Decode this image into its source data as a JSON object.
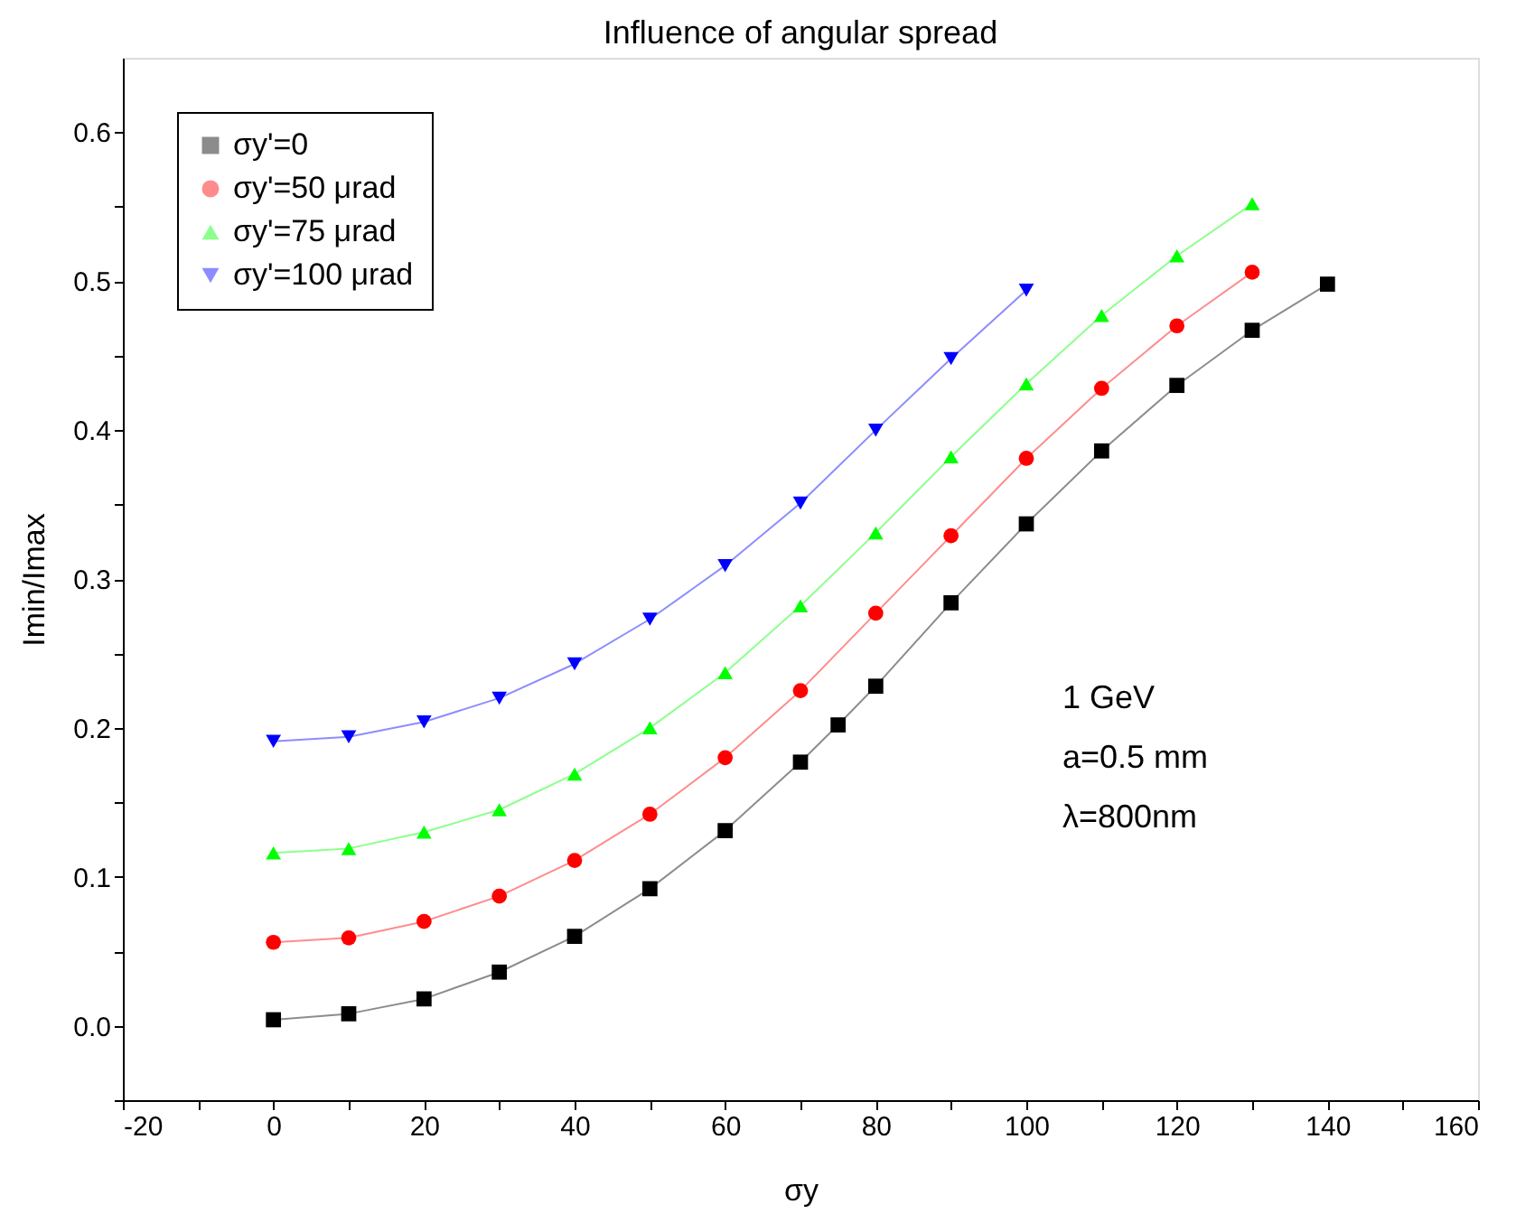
{
  "chart_data": {
    "type": "line",
    "title": "Influence of angular spread",
    "xlabel": "σy",
    "ylabel": "Imin/Imax",
    "xlim": [
      -20,
      160
    ],
    "ylim": [
      -0.05,
      0.65
    ],
    "xticks": [
      -20,
      {
        "value": -10,
        "label": null
      },
      0,
      {
        "value": 10,
        "label": null
      },
      20,
      {
        "value": 30,
        "label": null
      },
      40,
      {
        "value": 50,
        "label": null
      },
      60,
      {
        "value": 70,
        "label": null
      },
      80,
      {
        "value": 90,
        "label": null
      },
      100,
      {
        "value": 110,
        "label": null
      },
      120,
      {
        "value": 130,
        "label": null
      },
      140,
      {
        "value": 150,
        "label": null
      },
      160
    ],
    "yticks": [
      {
        "value": -0.05,
        "label": null
      },
      {
        "value": 0,
        "label": "0.0"
      },
      {
        "value": 0.05,
        "label": null
      },
      0.1,
      {
        "value": 0.15,
        "label": null
      },
      0.2,
      {
        "value": 0.25,
        "label": null
      },
      0.3,
      {
        "value": 0.35,
        "label": null
      },
      0.4,
      {
        "value": 0.45,
        "label": null
      },
      0.5,
      {
        "value": 0.55,
        "label": null
      },
      0.6
    ],
    "grid": false,
    "legend": "top left",
    "line_style": "solid",
    "series": [
      {
        "name": "σy'=0",
        "color": "#000000",
        "marker": "square",
        "x": [
          0,
          10,
          20,
          30,
          40,
          50,
          60,
          70,
          75,
          80,
          90,
          100,
          110,
          120,
          130,
          140
        ],
        "values": [
          0.004,
          0.008,
          0.018,
          0.036,
          0.06,
          0.092,
          0.131,
          0.177,
          0.202,
          0.228,
          0.284,
          0.337,
          0.386,
          0.43,
          0.467,
          0.498
        ]
      },
      {
        "name": "σy'=50 μrad",
        "color": "#ff0000",
        "marker": "circle",
        "x": [
          0,
          10,
          20,
          30,
          40,
          50,
          60,
          70,
          80,
          90,
          100,
          110,
          120,
          130
        ],
        "values": [
          0.056,
          0.059,
          0.07,
          0.087,
          0.111,
          0.142,
          0.18,
          0.225,
          0.277,
          0.329,
          0.381,
          0.428,
          0.47,
          0.506
        ]
      },
      {
        "name": "σy'=75 μrad",
        "color": "#00ff00",
        "marker": "triangle",
        "x": [
          0,
          10,
          20,
          30,
          40,
          50,
          60,
          70,
          80,
          90,
          100,
          110,
          120,
          130
        ],
        "values": [
          0.116,
          0.119,
          0.13,
          0.145,
          0.169,
          0.2,
          0.237,
          0.282,
          0.331,
          0.382,
          0.431,
          0.477,
          0.517,
          0.552
        ]
      },
      {
        "name": "σy'=100 μrad",
        "color": "#0000ff",
        "marker": "triangle-down",
        "x": [
          0,
          10,
          20,
          30,
          40,
          50,
          60,
          70,
          80,
          90,
          100
        ],
        "values": [
          0.191,
          0.194,
          0.204,
          0.22,
          0.243,
          0.273,
          0.309,
          0.351,
          0.4,
          0.448,
          0.494
        ]
      }
    ],
    "annotations": [
      "1 GeV",
      "a=0.5 mm",
      "λ=800nm"
    ]
  }
}
